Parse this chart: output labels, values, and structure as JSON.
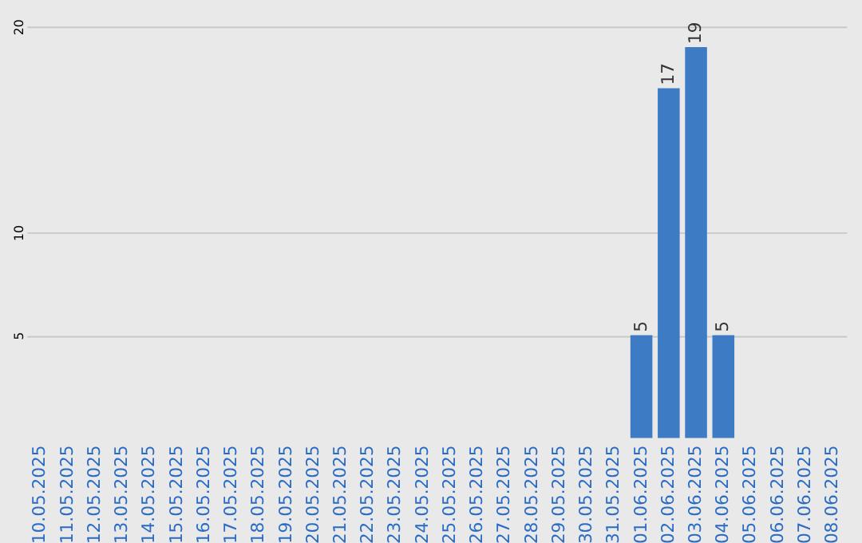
{
  "chart_data": {
    "type": "bar",
    "categories": [
      "10.05.2025",
      "11.05.2025",
      "12.05.2025",
      "13.05.2025",
      "14.05.2025",
      "15.05.2025",
      "16.05.2025",
      "17.05.2025",
      "18.05.2025",
      "19.05.2025",
      "20.05.2025",
      "21.05.2025",
      "22.05.2025",
      "23.05.2025",
      "24.05.2025",
      "25.05.2025",
      "26.05.2025",
      "27.05.2025",
      "28.05.2025",
      "29.05.2025",
      "30.05.2025",
      "31.05.2025",
      "01.06.2025",
      "02.06.2025",
      "03.06.2025",
      "04.06.2025",
      "05.06.2025",
      "06.06.2025",
      "07.06.2025",
      "08.06.2025"
    ],
    "values": [
      null,
      null,
      null,
      null,
      null,
      null,
      null,
      null,
      null,
      null,
      null,
      null,
      null,
      null,
      null,
      null,
      null,
      null,
      null,
      null,
      null,
      null,
      5,
      17,
      19,
      5,
      null,
      null,
      null,
      null
    ],
    "color": "#3d7cc4",
    "ylim": [
      0,
      20
    ],
    "yticks": [
      5,
      10,
      20
    ],
    "grid": "y",
    "data_labels": true
  }
}
